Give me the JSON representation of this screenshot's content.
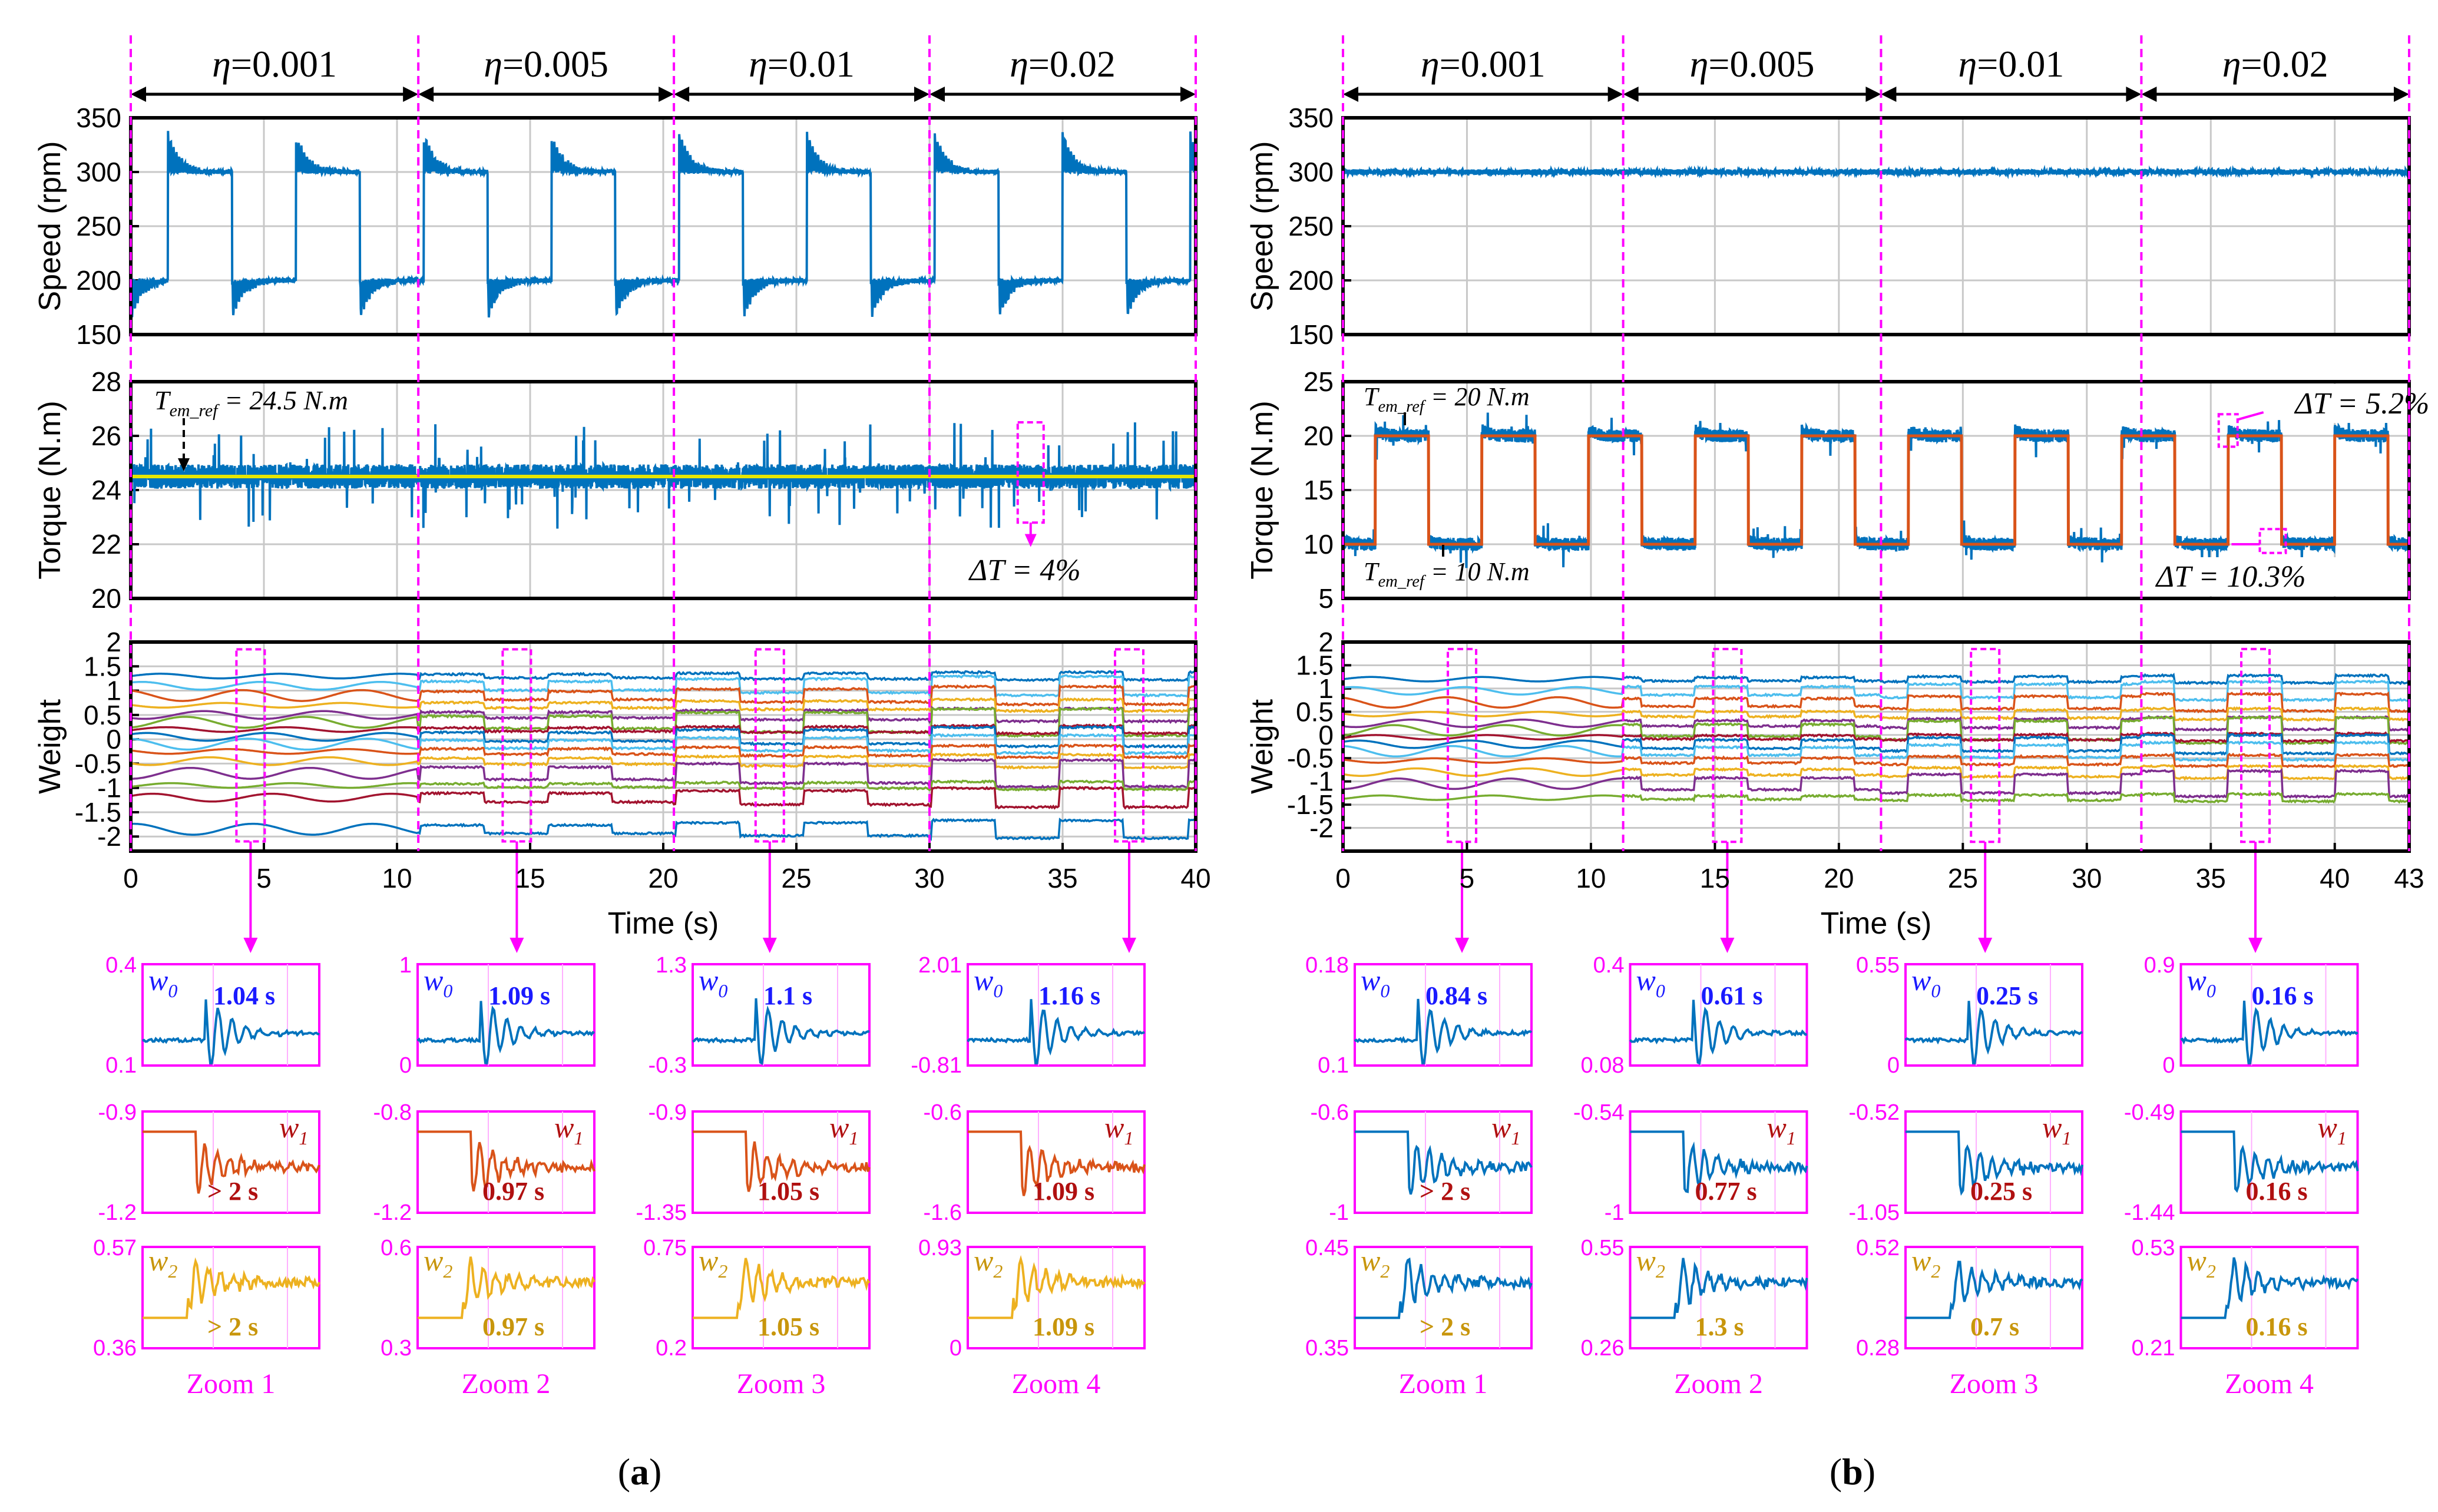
{
  "chart_data": [
    {
      "type": "line",
      "panel": "a",
      "caption": "(a)",
      "x": {
        "label": "Time (s)",
        "lim": [
          0,
          40
        ],
        "ticks": [
          0,
          5,
          10,
          15,
          20,
          25,
          30,
          35,
          40
        ],
        "tick_labels": [
          "0",
          "5",
          "10",
          "15",
          "20",
          "25",
          "30",
          "35",
          "40"
        ]
      },
      "segments": [
        {
          "label": "η=0.001",
          "t": [
            0,
            10.8
          ]
        },
        {
          "label": "η=0.005",
          "t": [
            10.8,
            20.4
          ]
        },
        {
          "label": "η=0.01",
          "t": [
            20.4,
            30
          ]
        },
        {
          "label": "η=0.02",
          "t": [
            30,
            40
          ]
        }
      ],
      "speed": {
        "ylabel": "Speed (rpm)",
        "ylim": [
          150,
          350
        ],
        "ticks": [
          150,
          200,
          250,
          300,
          350
        ],
        "tick_labels": [
          "150",
          "200",
          "250",
          "300",
          "350"
        ],
        "low": 200,
        "high": 300,
        "overshoot": 33,
        "period": 4.8,
        "first_rise": 1.4
      },
      "torque": {
        "ylabel": "Torque (N.m)",
        "ylim": [
          20,
          28
        ],
        "ticks": [
          20,
          22,
          24,
          26,
          28
        ],
        "tick_labels": [
          "20",
          "22",
          "24",
          "26",
          "28"
        ],
        "ref": 24.5,
        "ref_label": "T_em_ref = 24.5 N.m",
        "ripple_label": "ΔT = 4%",
        "ripple_pct": 4
      },
      "weight": {
        "ylabel": "Weight",
        "ylim": [
          -2.3,
          2
        ],
        "ticks": [
          -2,
          -1.5,
          -1,
          -0.5,
          0,
          0.5,
          1,
          1.5,
          2
        ],
        "tick_labels": [
          "-2",
          "-1.5",
          "-1",
          "-0.5",
          "0",
          "0.5",
          "1",
          "1.5",
          "2"
        ],
        "levels": [
          1.3,
          1.1,
          0.9,
          0.7,
          0.5,
          0.35,
          0.2,
          0.05,
          -0.1,
          -0.25,
          -0.45,
          -0.7,
          -0.95,
          -1.2,
          -1.85
        ]
      },
      "zoom_windows_t": [
        4.5,
        14.5,
        24.0,
        37.5
      ],
      "zooms": [
        {
          "label": "Zoom 1",
          "w0": {
            "name": "w0",
            "time": "1.04 s",
            "ylim": [
              "0.4",
              "0.1"
            ]
          },
          "w1": {
            "name": "w1",
            "time": "> 2 s",
            "ylim": [
              "-0.9",
              "-1.2"
            ]
          },
          "w2": {
            "name": "w2",
            "time": "> 2 s",
            "ylim": [
              "0.57",
              "0.36"
            ]
          }
        },
        {
          "label": "Zoom 2",
          "w0": {
            "name": "w0",
            "time": "1.09 s",
            "ylim": [
              "1",
              "0"
            ]
          },
          "w1": {
            "name": "w1",
            "time": "0.97 s",
            "ylim": [
              "-0.8",
              "-1.2"
            ]
          },
          "w2": {
            "name": "w2",
            "time": "0.97 s",
            "ylim": [
              "0.6",
              "0.3"
            ]
          }
        },
        {
          "label": "Zoom 3",
          "w0": {
            "name": "w0",
            "time": "1.1 s",
            "ylim": [
              "1.3",
              "-0.3"
            ]
          },
          "w1": {
            "name": "w1",
            "time": "1.05 s",
            "ylim": [
              "-0.9",
              "-1.35"
            ]
          },
          "w2": {
            "name": "w2",
            "time": "1.05 s",
            "ylim": [
              "0.75",
              "0.2"
            ]
          }
        },
        {
          "label": "Zoom 4",
          "w0": {
            "name": "w0",
            "time": "1.16 s",
            "ylim": [
              "2.01",
              "-0.81"
            ]
          },
          "w1": {
            "name": "w1",
            "time": "1.09 s",
            "ylim": [
              "-0.6",
              "-1.6"
            ]
          },
          "w2": {
            "name": "w2",
            "time": "1.09 s",
            "ylim": [
              "0.93",
              "0"
            ]
          }
        }
      ]
    },
    {
      "type": "line",
      "panel": "b",
      "caption": "(b)",
      "x": {
        "label": "Time (s)",
        "lim": [
          0,
          43
        ],
        "ticks": [
          0,
          5,
          10,
          15,
          20,
          25,
          30,
          35,
          40,
          43
        ],
        "tick_labels": [
          "0",
          "5",
          "10",
          "15",
          "20",
          "25",
          "30",
          "35",
          "40",
          "43"
        ]
      },
      "segments": [
        {
          "label": "η=0.001",
          "t": [
            0,
            11.3
          ]
        },
        {
          "label": "η=0.005",
          "t": [
            11.3,
            21.7
          ]
        },
        {
          "label": "η=0.01",
          "t": [
            21.7,
            32.2
          ]
        },
        {
          "label": "η=0.02",
          "t": [
            32.2,
            43
          ]
        }
      ],
      "speed": {
        "ylabel": "Speed (rpm)",
        "ylim": [
          150,
          350
        ],
        "ticks": [
          150,
          200,
          250,
          300,
          350
        ],
        "tick_labels": [
          "150",
          "200",
          "250",
          "300",
          "350"
        ],
        "constant": 300
      },
      "torque": {
        "ylabel": "Torque (N.m)",
        "ylim": [
          5,
          25
        ],
        "ticks": [
          5,
          10,
          15,
          20,
          25
        ],
        "tick_labels": [
          "5",
          "10",
          "15",
          "20",
          "25"
        ],
        "ref_high": 20,
        "ref_low": 10,
        "period": 4.3,
        "first_rise": 1.3,
        "ref_high_label": "T_em_ref = 20 N.m",
        "ref_low_label": "T_em_ref = 10 N.m",
        "ripple_high_label": "ΔT = 5.2%",
        "ripple_low_label": "ΔT = 10.3%"
      },
      "weight": {
        "ylabel": "Weight",
        "ylim": [
          -2.5,
          2
        ],
        "ticks": [
          -2,
          -1.5,
          -1,
          -0.5,
          0,
          0.5,
          1,
          1.5,
          2
        ],
        "tick_labels": [
          "-2",
          "-1.5",
          "-1",
          "-0.5",
          "0",
          "0.5",
          "1",
          "1.5",
          "2"
        ],
        "levels": [
          1.2,
          0.95,
          0.7,
          0.45,
          0.25,
          0.1,
          -0.05,
          -0.2,
          -0.35,
          -0.55,
          -0.8,
          -1.05,
          -1.35
        ]
      },
      "zoom_windows_t": [
        4.8,
        15.5,
        25.9,
        36.8
      ],
      "zooms": [
        {
          "label": "Zoom 1",
          "w0": {
            "name": "w0",
            "time": "0.84 s",
            "ylim": [
              "0.18",
              "0.1"
            ]
          },
          "w1": {
            "name": "w1",
            "time": "> 2 s",
            "ylim": [
              "-0.6",
              "-1"
            ]
          },
          "w2": {
            "name": "w2",
            "time": "> 2 s",
            "ylim": [
              "0.45",
              "0.35"
            ]
          }
        },
        {
          "label": "Zoom 2",
          "w0": {
            "name": "w0",
            "time": "0.61 s",
            "ylim": [
              "0.4",
              "0.08"
            ]
          },
          "w1": {
            "name": "w1",
            "time": "0.77 s",
            "ylim": [
              "-0.54",
              "-1"
            ]
          },
          "w2": {
            "name": "w2",
            "time": "1.3 s",
            "ylim": [
              "0.55",
              "0.26"
            ]
          }
        },
        {
          "label": "Zoom 3",
          "w0": {
            "name": "w0",
            "time": "0.25 s",
            "ylim": [
              "0.55",
              "0"
            ]
          },
          "w1": {
            "name": "w1",
            "time": "0.25 s",
            "ylim": [
              "-0.52",
              "-1.05"
            ]
          },
          "w2": {
            "name": "w2",
            "time": "0.7 s",
            "ylim": [
              "0.52",
              "0.28"
            ]
          }
        },
        {
          "label": "Zoom 4",
          "w0": {
            "name": "w0",
            "time": "0.16 s",
            "ylim": [
              "0.9",
              "0"
            ]
          },
          "w1": {
            "name": "w1",
            "time": "0.16 s",
            "ylim": [
              "-0.49",
              "-1.44"
            ]
          },
          "w2": {
            "name": "w2",
            "time": "0.16 s",
            "ylim": [
              "0.53",
              "0.21"
            ]
          }
        }
      ]
    }
  ],
  "colors": {
    "blue": "#0072bd",
    "orange": "#d95319",
    "yellow": "#edb120",
    "purple": "#7e2f8e",
    "green": "#77ac30",
    "cyan": "#4dbeee",
    "red": "#a2142f",
    "magenta": "#ff00ff",
    "ref_yellow": "#e6e600",
    "w0_text": "#1a1aff",
    "w1_text": "#b01010",
    "w2_text": "#c8960c"
  }
}
